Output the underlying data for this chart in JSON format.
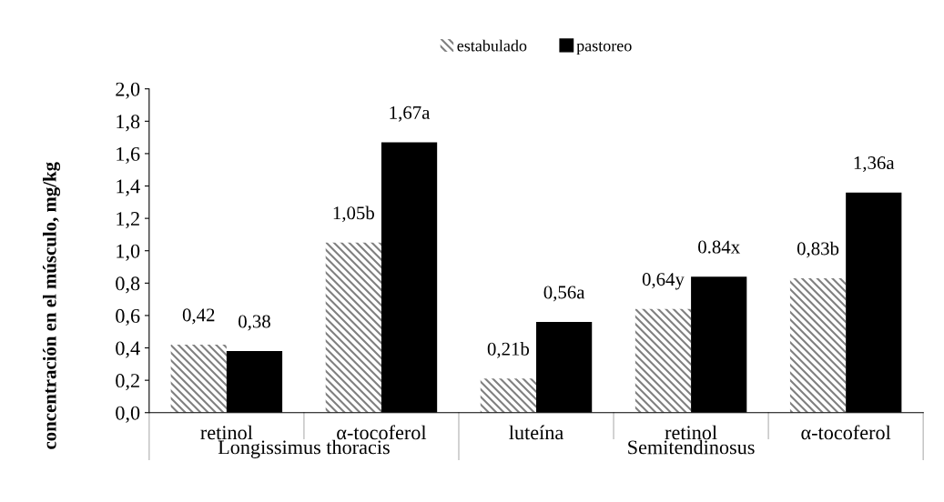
{
  "chart_data": {
    "type": "bar",
    "ylabel": "concentración en el músculo, mg/kg",
    "categories": [
      "retinol",
      "α-tocoferol",
      "luteína",
      "retinol",
      "α-tocoferol"
    ],
    "series": [
      {
        "name": "estabulado",
        "color": "#808080",
        "values": [
          0.42,
          1.05,
          0.21,
          0.64,
          0.83
        ],
        "value_labels": [
          "0,42",
          "1,05b",
          "0,21b",
          "0,64y",
          "0,83b"
        ]
      },
      {
        "name": "pastoreo",
        "color": "#000000",
        "values": [
          0.38,
          1.67,
          0.56,
          0.84,
          1.36
        ],
        "value_labels": [
          "0,38",
          "1,67a",
          "0,56a",
          "0.84x",
          "1,36a"
        ]
      }
    ],
    "ylim": [
      0,
      2.0
    ],
    "yticks": [
      {
        "value": 0,
        "label": "0,0"
      },
      {
        "value": 0.2,
        "label": "0,2"
      },
      {
        "value": 0.4,
        "label": "0,4"
      },
      {
        "value": 0.6,
        "label": "0,6"
      },
      {
        "value": 0.8,
        "label": "0,8"
      },
      {
        "value": 1.0,
        "label": "1,0"
      },
      {
        "value": 1.2,
        "label": "1,2"
      },
      {
        "value": 1.4,
        "label": "1,4"
      },
      {
        "value": 1.6,
        "label": "1,6"
      },
      {
        "value": 1.8,
        "label": "1,8"
      },
      {
        "value": 2.0,
        "label": "2,0"
      }
    ],
    "annotations": [
      "Longissimus thoracis",
      "Semitendinosus"
    ],
    "legend": "top",
    "grid": false
  }
}
